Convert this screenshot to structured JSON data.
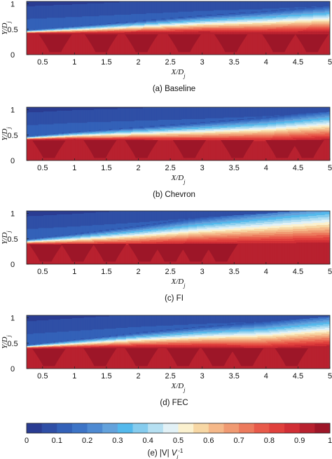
{
  "colormap": [
    "#2a3c92",
    "#2f4fa6",
    "#3361b8",
    "#3d74c6",
    "#4e8ad2",
    "#63a2dc",
    "#54b9ec",
    "#86ccee",
    "#b6e0f2",
    "#e2f1f6",
    "#fbf1cf",
    "#f7d7a4",
    "#f5b889",
    "#f09a72",
    "#ec7a5d",
    "#e85a4a",
    "#e0403c",
    "#d12e35",
    "#b8212f",
    "#9d1628"
  ],
  "panels": [
    {
      "caption": "(a) Baseline",
      "chart_data": {
        "type": "heatmap",
        "xlabel": "X/D_j",
        "ylabel": "Y/D_j",
        "xlim": [
          0.25,
          5
        ],
        "ylim": [
          0,
          1.05
        ],
        "xticks": [
          "0.5",
          "1",
          "1.5",
          "2",
          "2.5",
          "3",
          "3.5",
          "4",
          "4.5",
          "5"
        ],
        "yticks": [
          "0",
          "0.5",
          "1"
        ],
        "shear_layer": {
          "y_at_x": [
            [
              0.25,
              0.46
            ],
            [
              1,
              0.5
            ],
            [
              2,
              0.56
            ],
            [
              3,
              0.62
            ],
            [
              4,
              0.66
            ],
            [
              5,
              0.72
            ]
          ],
          "width": [
            [
              0.25,
              0.02
            ],
            [
              5,
              0.16
            ]
          ]
        },
        "core_cells": {
          "centers_x": [
            0.7,
            1.42,
            2.05,
            2.72,
            3.45,
            4.2,
            4.72
          ],
          "value": 0.98
        }
      }
    },
    {
      "caption": "(b) Chevron",
      "chart_data": {
        "type": "heatmap",
        "xlabel": "X/D_j",
        "ylabel": "Y/D_j",
        "xlim": [
          0.25,
          5
        ],
        "ylim": [
          0,
          1.05
        ],
        "xticks": [
          "0.5",
          "1",
          "1.5",
          "2",
          "2.5",
          "3",
          "3.5",
          "4",
          "4.5",
          "5"
        ],
        "yticks": [
          "0",
          "0.5",
          "1"
        ],
        "shear_layer": {
          "y_at_x": [
            [
              0.25,
              0.45
            ],
            [
              1,
              0.5
            ],
            [
              2,
              0.54
            ],
            [
              3,
              0.58
            ],
            [
              4,
              0.63
            ],
            [
              5,
              0.72
            ]
          ],
          "width": [
            [
              0.25,
              0.02
            ],
            [
              5,
              0.18
            ]
          ]
        },
        "core_cells": {
          "centers_x": [
            0.6,
            1.4,
            2.05,
            2.8,
            3.55,
            4.25,
            4.65
          ],
          "value": 0.98
        }
      }
    },
    {
      "caption": "(c) FI",
      "chart_data": {
        "type": "heatmap",
        "xlabel": "X/D_j",
        "ylabel": "Y/D_j",
        "xlim": [
          0.25,
          5
        ],
        "ylim": [
          0,
          1.05
        ],
        "xticks": [
          "0.5",
          "1",
          "1.5",
          "2",
          "2.5",
          "3",
          "3.5",
          "4",
          "4.5",
          "5"
        ],
        "yticks": [
          "0",
          "0.5",
          "1"
        ],
        "shear_layer": {
          "y_at_x": [
            [
              0.25,
              0.45
            ],
            [
              1,
              0.5
            ],
            [
              2,
              0.58
            ],
            [
              3,
              0.68
            ],
            [
              4,
              0.76
            ],
            [
              5,
              0.85
            ]
          ],
          "width": [
            [
              0.25,
              0.03
            ],
            [
              5,
              0.26
            ]
          ]
        },
        "core_cells": {
          "centers_x": [
            0.55,
            1.05,
            1.55,
            2.1,
            2.5,
            2.9,
            3.3
          ],
          "value": 0.98
        }
      }
    },
    {
      "caption": "(d) FEC",
      "chart_data": {
        "type": "heatmap",
        "xlabel": "X/D_j",
        "ylabel": "Y/D_j",
        "xlim": [
          0.25,
          5
        ],
        "ylim": [
          0,
          1.05
        ],
        "xticks": [
          "0.5",
          "1",
          "1.5",
          "2",
          "2.5",
          "3",
          "3.5",
          "4",
          "4.5",
          "5"
        ],
        "yticks": [
          "0",
          "0.5",
          "1"
        ],
        "shear_layer": {
          "y_at_x": [
            [
              0.25,
              0.44
            ],
            [
              1,
              0.5
            ],
            [
              2,
              0.58
            ],
            [
              3,
              0.64
            ],
            [
              4,
              0.68
            ],
            [
              5,
              0.78
            ]
          ],
          "width": [
            [
              0.25,
              0.02
            ],
            [
              5,
              0.2
            ]
          ]
        },
        "core_cells": {
          "centers_x": [
            0.6,
            1.4,
            2.05,
            2.7,
            3.25,
            3.7,
            4.4
          ],
          "value": 0.98
        }
      }
    }
  ],
  "colorbar": {
    "caption": "(e) |V| V_j^-1",
    "ticks": [
      "0",
      "0.1",
      "0.2",
      "0.3",
      "0.4",
      "0.5",
      "0.6",
      "0.7",
      "0.8",
      "0.9",
      "1"
    ],
    "range": [
      0,
      1
    ]
  }
}
